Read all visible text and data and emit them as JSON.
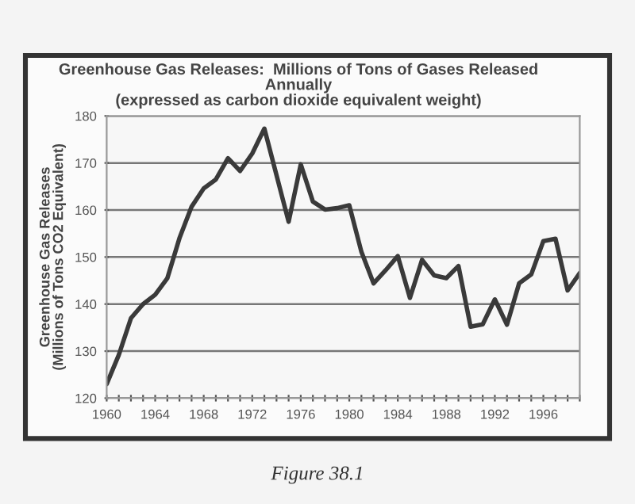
{
  "chart_data": {
    "type": "line",
    "title": "Greenhouse Gas Releases:  Millions of Tons of Gases Released\nAnnually\n(expressed as carbon dioxide equivalent weight)",
    "ylabel": "Greenhouse Gas Releases\n(Millions of Tons CO2 Equivalent)",
    "annotations": [
      "Figure 38.1"
    ],
    "x": [
      1960,
      1961,
      1962,
      1963,
      1964,
      1965,
      1966,
      1967,
      1968,
      1969,
      1970,
      1971,
      1972,
      1973,
      1974,
      1975,
      1976,
      1977,
      1978,
      1979,
      1980,
      1981,
      1982,
      1983,
      1984,
      1985,
      1986,
      1987,
      1988,
      1989,
      1990,
      1991,
      1992,
      1993,
      1994,
      1995,
      1996,
      1997,
      1998,
      1999
    ],
    "series": [
      {
        "color": "#3a3a3a",
        "values": [
          123,
          129.2,
          137,
          140,
          142,
          145.5,
          154,
          160.7,
          164.6,
          166.5,
          171,
          168.3,
          172,
          177.3,
          167.4,
          157.5,
          169.7,
          161.8,
          160.1,
          160.4,
          161,
          151.1,
          144.4,
          147.2,
          150.2,
          141.3,
          149.4,
          146.1,
          145.5,
          148.1,
          135.2,
          135.7,
          141,
          135.6,
          144.4,
          146.3,
          153.4,
          153.9,
          142.9,
          146.6
        ]
      }
    ],
    "xlim": [
      1960,
      1999
    ],
    "xticks": [
      1960,
      {
        "value": 1961,
        "label": null
      },
      {
        "value": 1962,
        "label": null
      },
      {
        "value": 1963,
        "label": null
      },
      1964,
      {
        "value": 1965,
        "label": null
      },
      {
        "value": 1966,
        "label": null
      },
      {
        "value": 1967,
        "label": null
      },
      1968,
      {
        "value": 1969,
        "label": null
      },
      {
        "value": 1970,
        "label": null
      },
      {
        "value": 1971,
        "label": null
      },
      1972,
      {
        "value": 1973,
        "label": null
      },
      {
        "value": 1974,
        "label": null
      },
      {
        "value": 1975,
        "label": null
      },
      1976,
      {
        "value": 1977,
        "label": null
      },
      {
        "value": 1978,
        "label": null
      },
      {
        "value": 1979,
        "label": null
      },
      1980,
      {
        "value": 1981,
        "label": null
      },
      {
        "value": 1982,
        "label": null
      },
      {
        "value": 1983,
        "label": null
      },
      1984,
      {
        "value": 1985,
        "label": null
      },
      {
        "value": 1986,
        "label": null
      },
      {
        "value": 1987,
        "label": null
      },
      1988,
      {
        "value": 1989,
        "label": null
      },
      {
        "value": 1990,
        "label": null
      },
      {
        "value": 1991,
        "label": null
      },
      1992,
      {
        "value": 1993,
        "label": null
      },
      {
        "value": 1994,
        "label": null
      },
      {
        "value": 1995,
        "label": null
      },
      1996,
      {
        "value": 1997,
        "label": null
      },
      {
        "value": 1998,
        "label": null
      },
      {
        "value": 1999,
        "label": null
      }
    ],
    "ylim": [
      120,
      180
    ],
    "yticks": [
      120,
      130,
      140,
      150,
      160,
      170,
      180
    ],
    "grid": "y",
    "marker": "none",
    "line_style": "solid",
    "legend": false
  }
}
